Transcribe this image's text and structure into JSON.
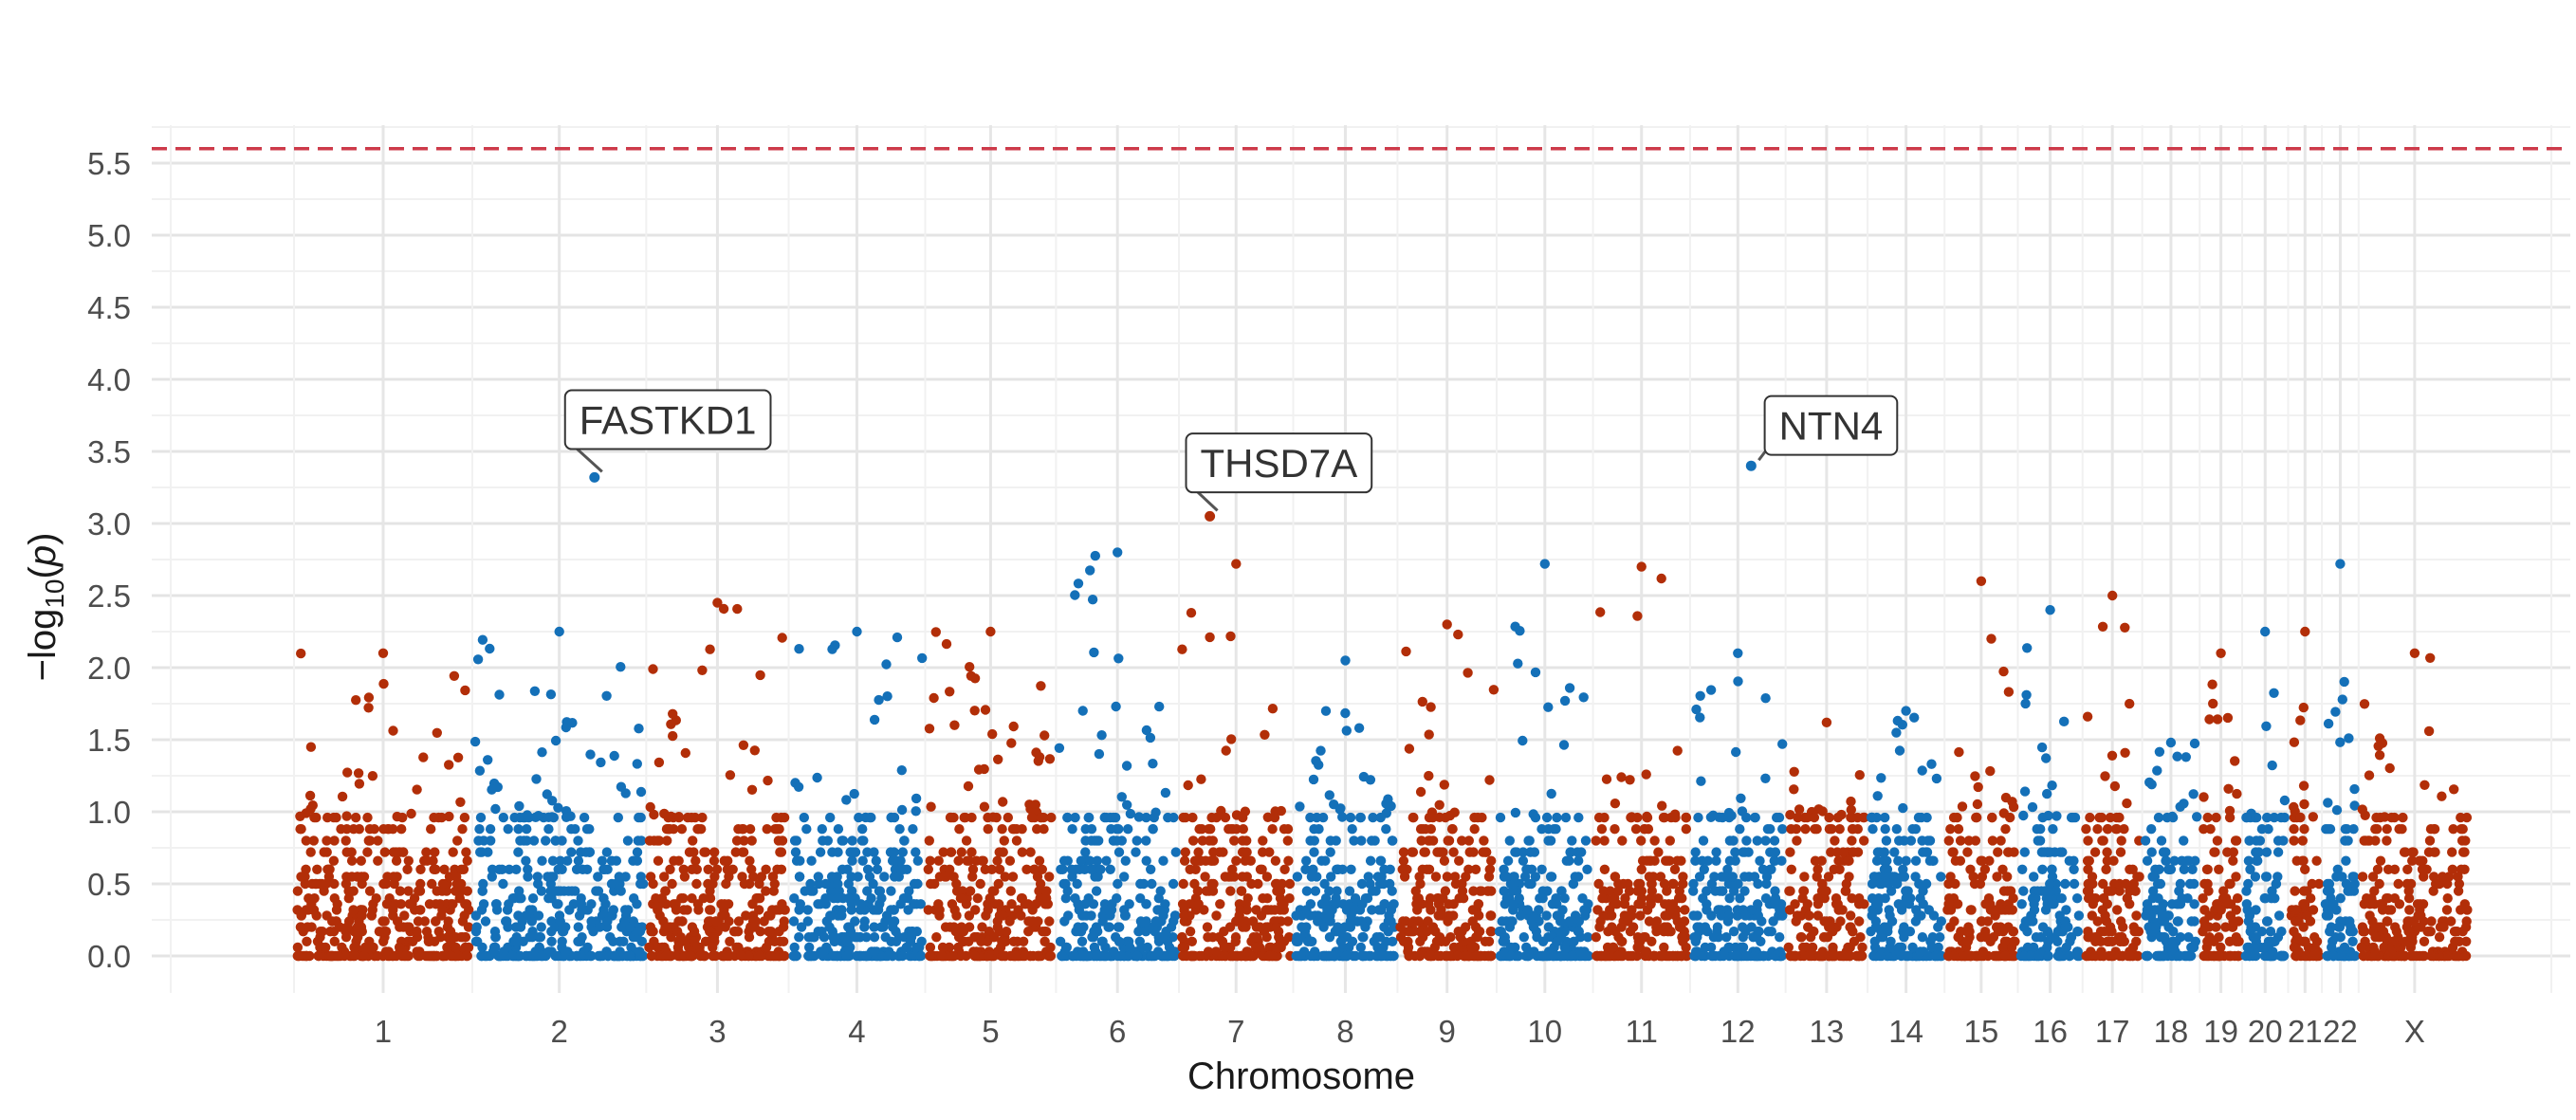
{
  "chart_data": {
    "type": "scatter",
    "title": "",
    "xlabel": "Chromosome",
    "ylabel_parts": {
      "prefix": "−log",
      "sub": "10",
      "open": "(",
      "var": "p",
      "close": ")"
    },
    "ylim": [
      0,
      5.75
    ],
    "yticks": [
      "0.0",
      "0.5",
      "1.0",
      "1.5",
      "2.0",
      "2.5",
      "3.0",
      "3.5",
      "4.0",
      "4.5",
      "5.0",
      "5.5"
    ],
    "grid": true,
    "legend": "none",
    "threshold": {
      "value": 5.6,
      "color": "#cd3a4a"
    },
    "colors": {
      "odd": "#b22e08",
      "even": "#1470b8"
    },
    "chromosomes": [
      {
        "label": "1",
        "start": 0,
        "end": 248,
        "max": 2.1,
        "color": "odd"
      },
      {
        "label": "2",
        "start": 248,
        "end": 490,
        "max": 2.25,
        "color": "even"
      },
      {
        "label": "3",
        "start": 490,
        "end": 688,
        "max": 2.45,
        "color": "odd"
      },
      {
        "label": "4",
        "start": 688,
        "end": 878,
        "max": 2.25,
        "color": "even"
      },
      {
        "label": "5",
        "start": 878,
        "end": 1060,
        "max": 2.25,
        "color": "odd"
      },
      {
        "label": "6",
        "start": 1060,
        "end": 1231,
        "max": 2.8,
        "color": "even"
      },
      {
        "label": "7",
        "start": 1231,
        "end": 1390,
        "max": 2.72,
        "color": "odd"
      },
      {
        "label": "8",
        "start": 1390,
        "end": 1535,
        "max": 2.05,
        "color": "even"
      },
      {
        "label": "9",
        "start": 1535,
        "end": 1673,
        "max": 2.3,
        "color": "odd"
      },
      {
        "label": "10",
        "start": 1673,
        "end": 1807,
        "max": 2.72,
        "color": "even"
      },
      {
        "label": "11",
        "start": 1807,
        "end": 1942,
        "max": 2.7,
        "color": "odd"
      },
      {
        "label": "12",
        "start": 1942,
        "end": 2075,
        "max": 2.1,
        "color": "even"
      },
      {
        "label": "13",
        "start": 2075,
        "end": 2189,
        "max": 1.62,
        "color": "odd"
      },
      {
        "label": "14",
        "start": 2189,
        "end": 2296,
        "max": 1.7,
        "color": "even"
      },
      {
        "label": "15",
        "start": 2296,
        "end": 2398,
        "max": 2.6,
        "color": "odd"
      },
      {
        "label": "16",
        "start": 2398,
        "end": 2488,
        "max": 2.4,
        "color": "even"
      },
      {
        "label": "17",
        "start": 2488,
        "end": 2571,
        "max": 2.5,
        "color": "odd"
      },
      {
        "label": "18",
        "start": 2571,
        "end": 2651,
        "max": 1.48,
        "color": "even"
      },
      {
        "label": "19",
        "start": 2651,
        "end": 2710,
        "max": 2.1,
        "color": "odd"
      },
      {
        "label": "20",
        "start": 2710,
        "end": 2774,
        "max": 2.25,
        "color": "even"
      },
      {
        "label": "21",
        "start": 2774,
        "end": 2821,
        "max": 2.25,
        "color": "odd"
      },
      {
        "label": "22",
        "start": 2821,
        "end": 2872,
        "max": 2.72,
        "color": "even"
      },
      {
        "label": "X",
        "start": 2872,
        "end": 3028,
        "max": 2.1,
        "color": "odd"
      }
    ],
    "highlights": [
      {
        "label": "FASTKD1",
        "chrom": "2",
        "x": 418,
        "y": 3.32,
        "label_x": 520,
        "label_y": 3.72
      },
      {
        "label": "THSD7A",
        "chrom": "7",
        "x": 1274,
        "y": 3.05,
        "label_x": 1370,
        "label_y": 3.42
      },
      {
        "label": "NTN4",
        "chrom": "12",
        "x": 2027,
        "y": 3.4,
        "label_x": 2138,
        "label_y": 3.68
      }
    ]
  }
}
